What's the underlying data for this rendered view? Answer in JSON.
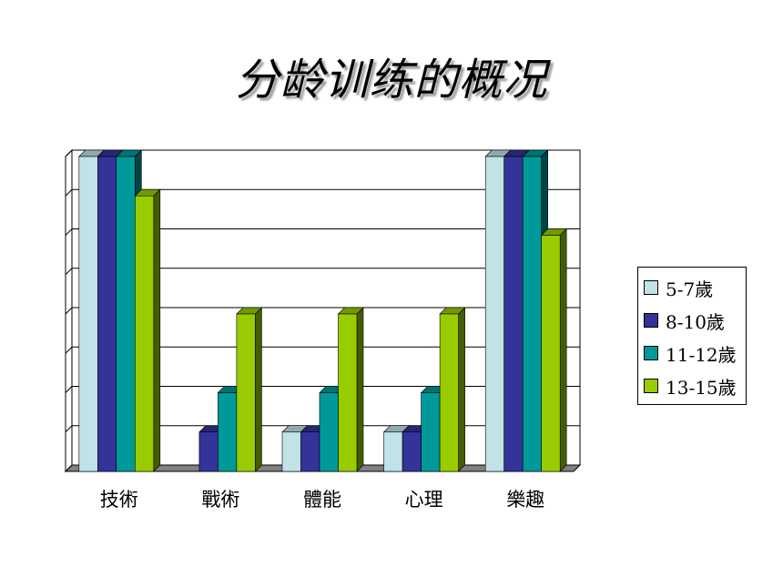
{
  "title": "分龄训练的概况",
  "chart_data": {
    "type": "bar",
    "categories": [
      "技術",
      "戰術",
      "體能",
      "心理",
      "樂趣"
    ],
    "series": [
      {
        "name": "5-7歲",
        "color": "#bfe3e6",
        "values": [
          8,
          0,
          1,
          1,
          8
        ]
      },
      {
        "name": "8-10歲",
        "color": "#333399",
        "values": [
          8,
          1,
          1,
          1,
          8
        ]
      },
      {
        "name": "11-12歲",
        "color": "#009999",
        "values": [
          8,
          2,
          2,
          2,
          8
        ]
      },
      {
        "name": "13-15歲",
        "color": "#99cc00",
        "values": [
          7,
          4,
          4,
          4,
          6
        ]
      }
    ],
    "ylim": [
      0,
      8
    ],
    "grid": true,
    "legend": "right"
  }
}
